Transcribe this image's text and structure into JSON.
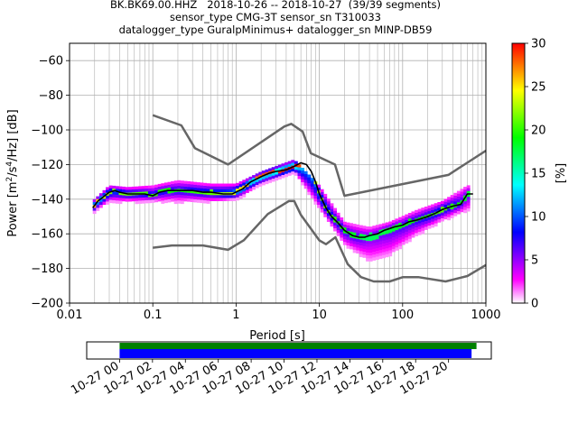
{
  "header": {
    "title_line1": "BK.BK69.00.HHZ   2018-10-26 -- 2018-10-27  (39/39 segments)",
    "title_line2": "sensor_type CMG-3T sensor_sn T310033",
    "title_line3": "datalogger_type GuralpMinimus+ datalogger_sn MINP-DB59"
  },
  "chart_data": [
    {
      "type": "heatmap",
      "title": "BK.BK69.00.HHZ   2018-10-26 -- 2018-10-27  (39/39 segments)",
      "xlabel": "Period [s]",
      "ylabel_parts": [
        "Power [m",
        "2",
        "/s",
        "4",
        "/Hz] [dB]"
      ],
      "xscale": "log",
      "xlim": [
        0.01,
        1000
      ],
      "ylim": [
        -200,
        -50
      ],
      "x_ticks": [
        0.01,
        0.1,
        1,
        10,
        100,
        1000
      ],
      "x_tick_labels": [
        "0.01",
        "0.1",
        "1",
        "10",
        "100",
        "1000"
      ],
      "y_ticks": [
        -200,
        -180,
        -160,
        -140,
        -120,
        -100,
        -80,
        -60
      ],
      "y_tick_labels": [
        "−200",
        "−180",
        "−160",
        "−140",
        "−120",
        "−100",
        "−80",
        "−60"
      ],
      "grid": true,
      "colorbar": {
        "label": "[%]",
        "range": [
          0,
          30
        ],
        "ticks": [
          0,
          5,
          10,
          15,
          20,
          25,
          30
        ],
        "tick_labels": [
          "0",
          "5",
          "10",
          "15",
          "20",
          "25",
          "30"
        ],
        "colors": [
          "#ffffff",
          "#ff00ff",
          "#7f00ff",
          "#0000ff",
          "#0080ff",
          "#00ffff",
          "#00ff80",
          "#00ff00",
          "#80ff00",
          "#ffff00",
          "#ff8000",
          "#ff0000"
        ]
      },
      "mode_curve": {
        "name": "mode",
        "color": "#000000",
        "x": [
          0.019,
          0.022,
          0.025,
          0.03,
          0.035,
          0.04,
          0.05,
          0.06,
          0.08,
          0.1,
          0.12,
          0.15,
          0.2,
          0.3,
          0.4,
          0.5,
          0.7,
          0.9,
          1.2,
          1.5,
          2.0,
          2.5,
          3.0,
          4.0,
          5.0,
          6.0,
          7.0,
          8.0,
          9.0,
          10,
          12,
          14,
          17,
          20,
          25,
          30,
          35,
          40,
          50,
          60,
          70,
          80,
          100,
          120,
          150,
          200,
          250,
          300,
          400,
          500,
          600,
          700
        ],
        "y": [
          -145,
          -141,
          -139,
          -136,
          -135,
          -136,
          -137,
          -137,
          -137,
          -138,
          -136,
          -135,
          -135,
          -135,
          -136,
          -136,
          -137,
          -137,
          -134,
          -130,
          -127,
          -125,
          -124,
          -123,
          -121,
          -119,
          -120,
          -124,
          -130,
          -137,
          -145,
          -150,
          -154,
          -158,
          -161,
          -162,
          -162,
          -161,
          -160,
          -158,
          -157,
          -156,
          -155,
          -153,
          -152,
          -150,
          -148,
          -146,
          -144,
          -143,
          -137,
          -137
        ]
      },
      "hist_density": [
        {
          "x": 0.02,
          "y_min": -147,
          "y_max": -140,
          "peak": 14
        },
        {
          "x": 0.03,
          "y_min": -141,
          "y_max": -132,
          "peak": 10
        },
        {
          "x": 0.05,
          "y_min": -141,
          "y_max": -133,
          "peak": 9
        },
        {
          "x": 0.1,
          "y_min": -141,
          "y_max": -132,
          "peak": 8
        },
        {
          "x": 0.2,
          "y_min": -141,
          "y_max": -129,
          "peak": 7
        },
        {
          "x": 0.5,
          "y_min": -141,
          "y_max": -131,
          "peak": 9
        },
        {
          "x": 1.0,
          "y_min": -140,
          "y_max": -131,
          "peak": 12
        },
        {
          "x": 2.0,
          "y_min": -131,
          "y_max": -124,
          "peak": 16
        },
        {
          "x": 5.0,
          "y_min": -124,
          "y_max": -117,
          "peak": 18
        },
        {
          "x": 10,
          "y_min": -145,
          "y_max": -132,
          "peak": 10
        },
        {
          "x": 20,
          "y_min": -166,
          "y_max": -153,
          "peak": 7
        },
        {
          "x": 40,
          "y_min": -175,
          "y_max": -156,
          "peak": 5
        },
        {
          "x": 70,
          "y_min": -172,
          "y_max": -153,
          "peak": 6
        },
        {
          "x": 150,
          "y_min": -160,
          "y_max": -146,
          "peak": 7
        },
        {
          "x": 300,
          "y_min": -152,
          "y_max": -141,
          "peak": 9
        },
        {
          "x": 600,
          "y_min": -146,
          "y_max": -132,
          "peak": 6
        }
      ],
      "series": [
        {
          "name": "high noise model",
          "color": "#666666",
          "x": [
            0.1,
            0.22,
            0.32,
            0.8,
            3.8,
            4.6,
            6.3,
            7.9,
            15.4,
            20,
            354.8,
            1000
          ],
          "y": [
            -91.5,
            -97.4,
            -110.5,
            -120,
            -98,
            -96.5,
            -101,
            -113.5,
            -120,
            -138,
            -126,
            -112
          ]
        },
        {
          "name": "low noise model",
          "color": "#666666",
          "x": [
            0.1,
            0.17,
            0.4,
            0.8,
            1.24,
            2.4,
            4.3,
            5.0,
            6.0,
            10,
            12,
            15.6,
            21.9,
            31.6,
            45,
            70,
            101,
            154,
            328,
            600,
            1000
          ],
          "y": [
            -168,
            -166.7,
            -166.7,
            -169.2,
            -163.7,
            -148.6,
            -141.1,
            -141.1,
            -149,
            -163.8,
            -166,
            -162,
            -177.5,
            -185,
            -187.5,
            -187.5,
            -185,
            -185,
            -187.5,
            -184.4,
            -178
          ]
        }
      ]
    },
    {
      "type": "bar",
      "orientation": "horizontal",
      "x_tick_labels": [
        "10-27 00",
        "10-27 02",
        "10-27 04",
        "10-27 06",
        "10-27 08",
        "10-27 10",
        "10-27 12",
        "10-27 14",
        "10-27 16",
        "10-27 18",
        "10-27 20"
      ],
      "xlim_hours": [
        -2.0,
        22.6
      ],
      "series": [
        {
          "color": "#008000",
          "start_hour": 0.0,
          "end_hour": 21.7
        },
        {
          "color": "#0000ff",
          "start_hour": 0.0,
          "end_hour": 21.4
        }
      ]
    }
  ]
}
